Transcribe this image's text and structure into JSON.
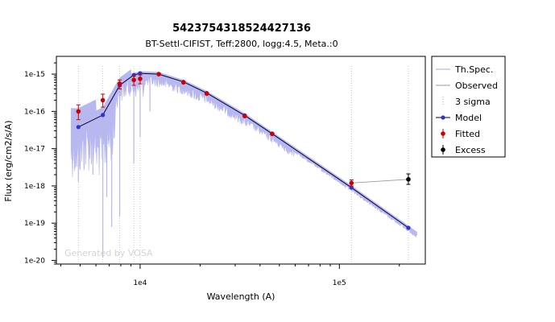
{
  "chart_data": {
    "type": "scatter",
    "title": "5423754318524427136",
    "subtitle": "BT-Settl-CIFIST, Teff:2800, logg:4.5, Meta.:0",
    "xlabel": "Wavelength (A)",
    "ylabel": "Flux (erg/cm2/s/A)",
    "xscale": "log",
    "yscale": "log",
    "xlim": [
      3800,
      270000
    ],
    "ylim": [
      8e-21,
      3e-15
    ],
    "x_ticks": [
      {
        "value": 10000,
        "label": "1e4"
      },
      {
        "value": 100000,
        "label": "1e5"
      }
    ],
    "y_ticks": [
      {
        "value": 1e-15,
        "label": "1e-15"
      },
      {
        "value": 1e-16,
        "label": "1e-16"
      },
      {
        "value": 1e-17,
        "label": "1e-17"
      },
      {
        "value": 1e-18,
        "label": "1e-18"
      },
      {
        "value": 1e-19,
        "label": "1e-19"
      },
      {
        "value": 1e-20,
        "label": "1e-20"
      }
    ],
    "legend_position": "right, outside plot",
    "legend": [
      "Th.Spec.",
      "Observed",
      "3 sigma",
      "Model",
      "Fitted",
      "Excess"
    ],
    "watermark": "Generated by VOSA",
    "series": [
      {
        "name": "Model",
        "color": "#3333cc",
        "points": [
          [
            4900,
            3.8e-17
          ],
          [
            6500,
            8e-17
          ],
          [
            7900,
            5e-16
          ],
          [
            9300,
            9.5e-16
          ],
          [
            10000,
            1.05e-15
          ],
          [
            12400,
            1e-15
          ],
          [
            16500,
            6.2e-16
          ],
          [
            21600,
            3.1e-16
          ],
          [
            33500,
            7.8e-17
          ],
          [
            46000,
            2.5e-17
          ],
          [
            115000,
            9e-19
          ],
          [
            222000,
            7.5e-20
          ]
        ]
      },
      {
        "name": "Fitted",
        "color": "#cc0000",
        "points": [
          [
            4900,
            1e-16
          ],
          [
            6500,
            2e-16
          ],
          [
            7900,
            5.5e-16
          ],
          [
            9300,
            7e-16
          ],
          [
            10000,
            7.5e-16
          ],
          [
            12400,
            1e-15
          ],
          [
            16500,
            6e-16
          ],
          [
            21600,
            3e-16
          ],
          [
            33500,
            7.5e-17
          ],
          [
            46000,
            2.5e-17
          ],
          [
            115000,
            1.2e-18
          ]
        ],
        "errors": [
          [
            6e-17,
            1.5e-16
          ],
          [
            1.3e-16,
            2.9e-16
          ],
          [
            4e-16,
            7e-16
          ],
          [
            5e-16,
            9e-16
          ],
          [
            5.5e-16,
            9.5e-16
          ],
          [
            null,
            null
          ],
          [
            null,
            null
          ],
          [
            null,
            null
          ],
          [
            null,
            null
          ],
          [
            null,
            null
          ],
          [
            1e-18,
            1.45e-18
          ]
        ]
      },
      {
        "name": "Excess",
        "color": "#000000",
        "points": [
          [
            222000,
            1.5e-18
          ]
        ],
        "errors": [
          [
            1.1e-18,
            2.1e-18
          ]
        ]
      }
    ],
    "observed_line": [
      [
        115000,
        1.2e-18
      ],
      [
        222000,
        1.5e-18
      ]
    ],
    "three_sigma_wavelengths": [
      4900,
      6500,
      7900,
      9300,
      10000,
      115000,
      222000
    ],
    "th_spec_color": "#b8b8f0"
  }
}
